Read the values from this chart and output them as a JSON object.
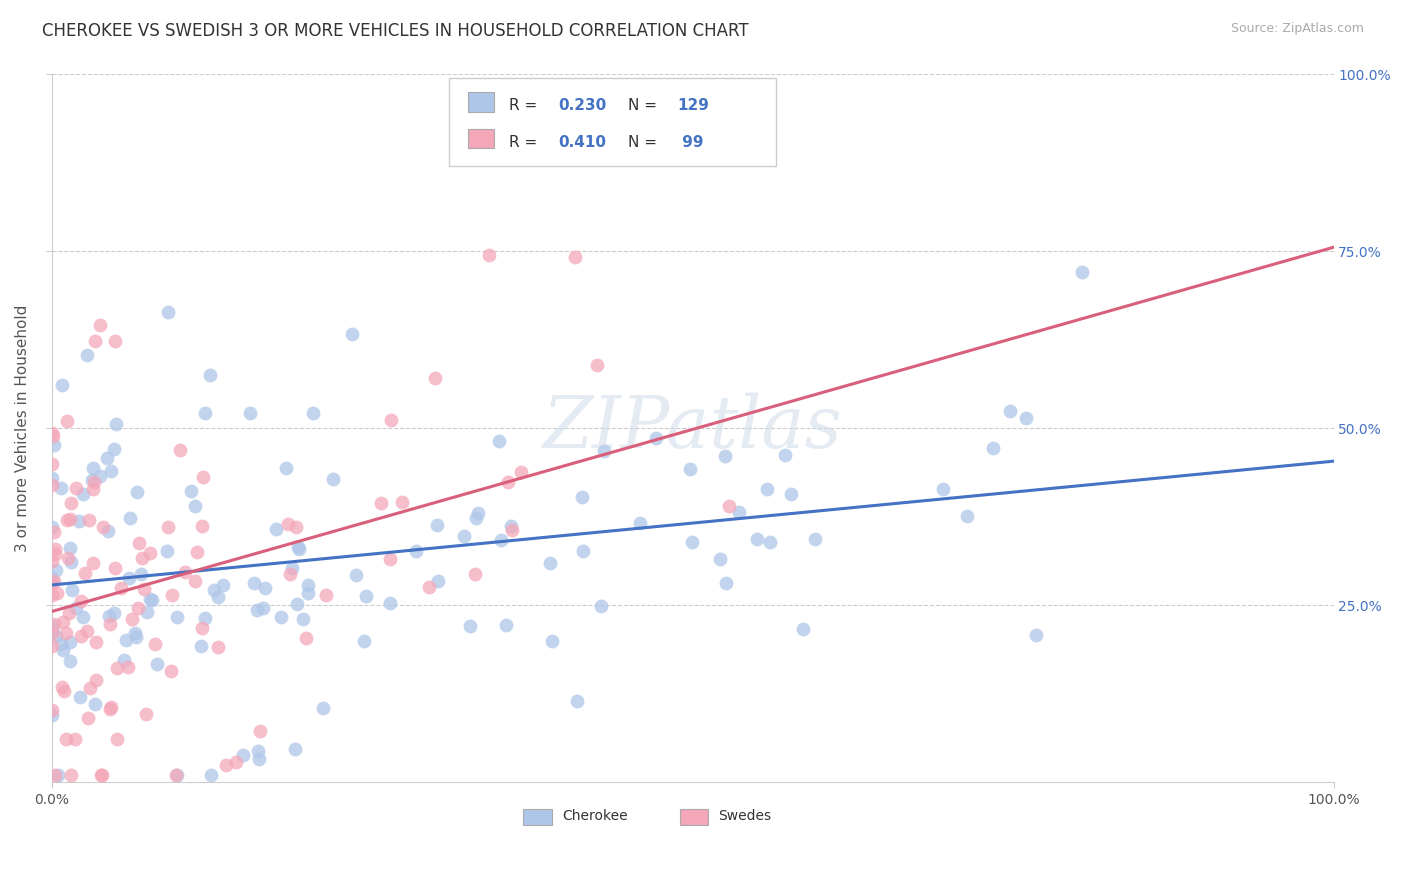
{
  "title": "CHEROKEE VS SWEDISH 3 OR MORE VEHICLES IN HOUSEHOLD CORRELATION CHART",
  "source": "Source: ZipAtlas.com",
  "ylabel": "3 or more Vehicles in Household",
  "xlim": [
    0,
    1
  ],
  "ylim": [
    0,
    1
  ],
  "ytick_vals": [
    0.25,
    0.5,
    0.75,
    1.0
  ],
  "ytick_labels": [
    "25.0%",
    "50.0%",
    "75.0%",
    "100.0%"
  ],
  "xtick_vals": [
    0.0,
    1.0
  ],
  "xtick_labels": [
    "0.0%",
    "100.0%"
  ],
  "cherokee_color": "#aec6e8",
  "cherokee_line": "#4472c4",
  "swedes_color": "#f4a7b9",
  "swedes_line": "#d95f7a",
  "tick_color": "#4472c4",
  "background": "#ffffff",
  "grid_color": "#cccccc",
  "watermark": "ZIPatlas",
  "title_fontsize": 12,
  "source_fontsize": 9,
  "label_fontsize": 11,
  "tick_fontsize": 10,
  "N_cherokee": 129,
  "N_swedes": 99,
  "R_cherokee": 0.23,
  "R_swedes": 0.41,
  "seed_cherokee": 42,
  "seed_swedes": 7
}
